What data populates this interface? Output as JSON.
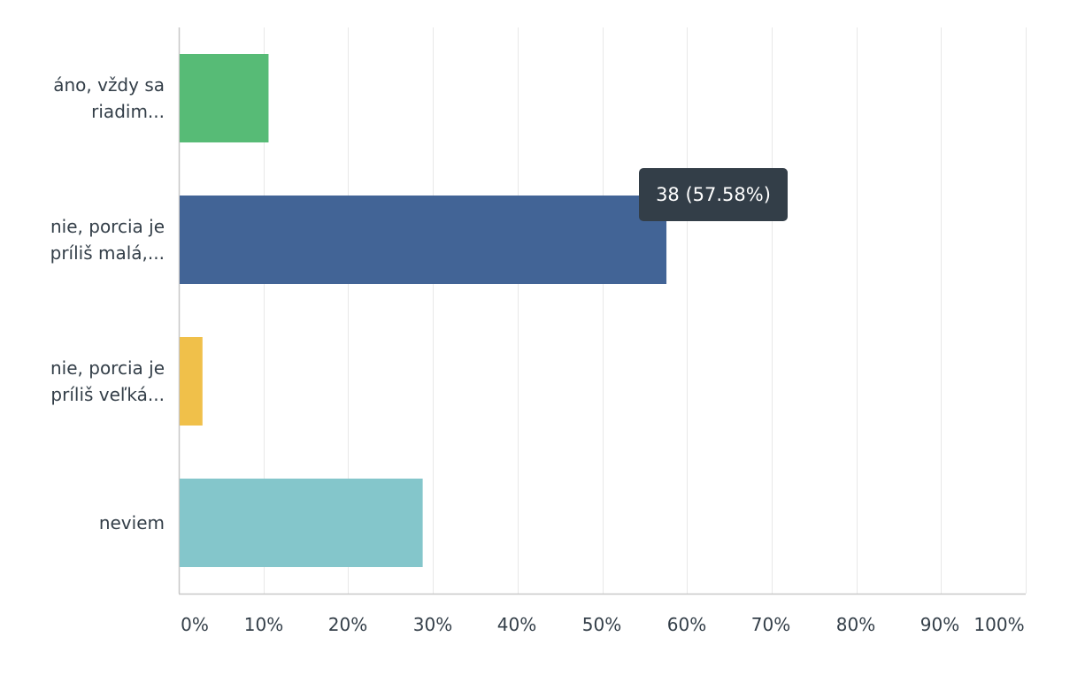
{
  "chart_data": {
    "type": "bar",
    "orientation": "horizontal",
    "categories": [
      [
        "áno, vždy sa",
        "riadim..."
      ],
      [
        "nie, porcia je",
        "príliš malá,..."
      ],
      [
        "nie, porcia je",
        "príliš veľká..."
      ],
      [
        "neviem"
      ]
    ],
    "values": [
      10.6,
      57.58,
      2.8,
      28.8
    ],
    "colors": [
      "#57bb76",
      "#426496",
      "#f0c04a",
      "#84c6cb"
    ],
    "xlim": [
      0,
      100
    ],
    "ticks": [
      "0%",
      "10%",
      "20%",
      "30%",
      "40%",
      "50%",
      "60%",
      "70%",
      "80%",
      "90%",
      "100%"
    ],
    "grid": true,
    "tooltip": {
      "category_index": 1,
      "text": "38 (57.58%)"
    }
  }
}
